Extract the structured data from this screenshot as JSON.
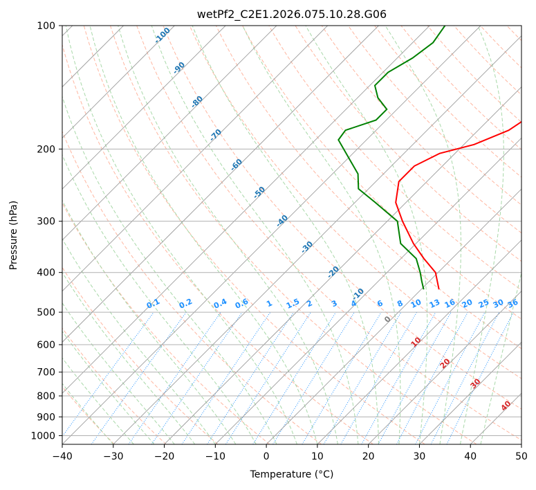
{
  "chart_data": {
    "type": "line",
    "title": "wetPf2_C2E1.2026.075.10.28.G06",
    "xlabel": "Temperature (°C)",
    "ylabel": "Pressure (hPa)",
    "xlim": [
      -40,
      50
    ],
    "ylim": [
      1050,
      100
    ],
    "x_ticks": [
      -40,
      -30,
      -20,
      -10,
      0,
      10,
      20,
      30,
      40,
      50
    ],
    "x_tick_labels": [
      "−40",
      "−30",
      "−20",
      "−10",
      "0",
      "10",
      "20",
      "30",
      "40",
      "50"
    ],
    "y_ticks": [
      100,
      200,
      300,
      400,
      500,
      600,
      700,
      800,
      900,
      1000
    ],
    "y_tick_labels": [
      "100",
      "200",
      "300",
      "400",
      "500",
      "600",
      "700",
      "800",
      "900",
      "1000"
    ],
    "colors": {
      "temperature": "#ff0000",
      "dewpoint": "#008000",
      "isotherm": "#9e9e9e",
      "isobar": "#b0b0b0",
      "dry_adiabat": "#ffb6a0",
      "moist_adiabat": "#a8d8a8",
      "mixing_ratio": "#1e90ff",
      "isotherm_label": "#1f77b4",
      "moist_label": "#d62728"
    },
    "series": [
      {
        "name": "Temperature",
        "color": "#ff0000",
        "points": [
          {
            "p": 440,
            "t": 3.5
          },
          {
            "p": 400,
            "t": -0.5
          },
          {
            "p": 370,
            "t": -5.5
          },
          {
            "p": 340,
            "t": -10.5
          },
          {
            "p": 300,
            "t": -17
          },
          {
            "p": 270,
            "t": -22
          },
          {
            "p": 240,
            "t": -25.5
          },
          {
            "p": 220,
            "t": -25.5
          },
          {
            "p": 205,
            "t": -23
          },
          {
            "p": 195,
            "t": -18
          },
          {
            "p": 180,
            "t": -14
          },
          {
            "p": 170,
            "t": -13
          },
          {
            "p": 160,
            "t": -13
          },
          {
            "p": 150,
            "t": -12.5
          },
          {
            "p": 140,
            "t": -12
          },
          {
            "p": 130,
            "t": -11.5
          },
          {
            "p": 120,
            "t": -12
          },
          {
            "p": 112,
            "t": -14
          },
          {
            "p": 100,
            "t": -16
          }
        ]
      },
      {
        "name": "Dewpoint",
        "color": "#008000",
        "points": [
          {
            "p": 440,
            "t": 0.5
          },
          {
            "p": 420,
            "t": -1.5
          },
          {
            "p": 400,
            "t": -3.5
          },
          {
            "p": 370,
            "t": -7
          },
          {
            "p": 340,
            "t": -13
          },
          {
            "p": 300,
            "t": -18
          },
          {
            "p": 270,
            "t": -26
          },
          {
            "p": 250,
            "t": -32
          },
          {
            "p": 230,
            "t": -35
          },
          {
            "p": 210,
            "t": -40
          },
          {
            "p": 190,
            "t": -45.5
          },
          {
            "p": 180,
            "t": -46
          },
          {
            "p": 170,
            "t": -42
          },
          {
            "p": 160,
            "t": -42
          },
          {
            "p": 150,
            "t": -46
          },
          {
            "p": 140,
            "t": -49
          },
          {
            "p": 130,
            "t": -49
          },
          {
            "p": 120,
            "t": -47
          },
          {
            "p": 110,
            "t": -46
          },
          {
            "p": 100,
            "t": -47
          }
        ]
      }
    ],
    "isotherm_labels": [
      "-100",
      "-90",
      "-80",
      "-70",
      "-60",
      "-50",
      "-40",
      "-30",
      "-20",
      "-10"
    ],
    "mixing_ratio_labels": [
      "0.1",
      "0.2",
      "0.4",
      "0.6",
      "1",
      "1.5",
      "2",
      "3",
      "4",
      "6",
      "8",
      "10",
      "13",
      "16",
      "20",
      "25",
      "30",
      "36"
    ],
    "moist_adiabat_labels": [
      "0",
      "10",
      "20",
      "30",
      "40"
    ]
  }
}
